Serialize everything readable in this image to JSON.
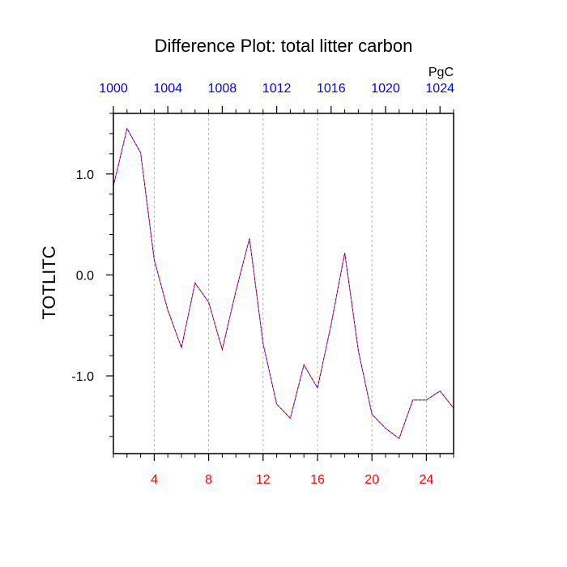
{
  "chart_data": {
    "type": "line",
    "title": "Difference Plot: total litter carbon",
    "ylabel": "TOTLITC",
    "units": "PgC",
    "xlim": [
      1,
      26
    ],
    "ylim": [
      -1.77,
      1.6
    ],
    "bottom_ticks": [
      {
        "value": 4,
        "label": "4"
      },
      {
        "value": 8,
        "label": "8"
      },
      {
        "value": 12,
        "label": "12"
      },
      {
        "value": 16,
        "label": "16"
      },
      {
        "value": 20,
        "label": "20"
      },
      {
        "value": 24,
        "label": "24"
      }
    ],
    "top_ticks": [
      {
        "value": 1,
        "label": "1000"
      },
      {
        "value": 5,
        "label": "1004"
      },
      {
        "value": 9,
        "label": "1008"
      },
      {
        "value": 13,
        "label": "1012"
      },
      {
        "value": 17,
        "label": "1016"
      },
      {
        "value": 21,
        "label": "1020"
      },
      {
        "value": 25,
        "label": "1024"
      }
    ],
    "y_ticks": [
      {
        "value": 1.0,
        "label": "1.0"
      },
      {
        "value": 0.0,
        "label": "0.0"
      },
      {
        "value": -1.0,
        "label": "-1.0"
      }
    ],
    "grid": "vertical dashed at bottom ticks",
    "series": [
      {
        "x": [
          1,
          2,
          3,
          4,
          5,
          6,
          7,
          8,
          9,
          10,
          11,
          12,
          13,
          14,
          15,
          16,
          17,
          18,
          19,
          20,
          21,
          22,
          23,
          24,
          25,
          26
        ],
        "values": [
          0.88,
          1.45,
          1.21,
          0.15,
          -0.35,
          -0.72,
          -0.08,
          -0.27,
          -0.74,
          -0.16,
          0.36,
          -0.68,
          -1.28,
          -1.42,
          -0.89,
          -1.12,
          -0.49,
          0.22,
          -0.75,
          -1.38,
          -1.52,
          -1.62,
          -1.24,
          -1.24,
          -1.15,
          -1.32
        ]
      }
    ]
  },
  "colors": {
    "line": "#7a0fb0",
    "top_tick_labels": "#0000ff",
    "bottom_tick_labels": "#ff0000",
    "axis": "#000000",
    "grid": "#b4b4b4"
  }
}
